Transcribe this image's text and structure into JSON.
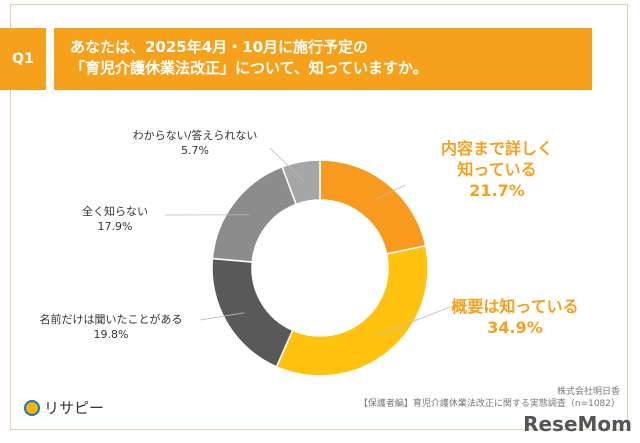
{
  "header": {
    "q_label": "Q1",
    "title_line1": "あなたは、2025年4月・10月に施行予定の",
    "title_line2": "「育児介護休業法改正」について、知っていますか。"
  },
  "chart_data": {
    "type": "pie",
    "donut": true,
    "start": "top",
    "direction": "clockwise",
    "categories": [
      "内容まで詳しく知っている",
      "概要は知っている",
      "名前だけは聞いたことがある",
      "全く知らない",
      "わからない/答えられない"
    ],
    "values": [
      21.7,
      34.9,
      19.8,
      17.9,
      5.7
    ],
    "value_labels": [
      "21.7%",
      "34.9%",
      "19.8%",
      "17.9%",
      "5.7%"
    ],
    "colors": [
      "#F79A1E",
      "#FFC20E",
      "#595959",
      "#8C8C8C",
      "#A6A6A6"
    ],
    "label_lines": [
      [
        "内容まで詳しく",
        "知っている"
      ],
      [
        "概要は知っている"
      ],
      [
        "名前だけは聞いたことがある"
      ],
      [
        "全く知らない"
      ],
      [
        "わからない/答えられない"
      ]
    ]
  },
  "footer": {
    "logo": "リサピー",
    "company": "株式会社明日香",
    "source": "【保護者編】育児介護休業法改正に関する実態調査（n=1082）",
    "watermark": "ReseMom"
  }
}
